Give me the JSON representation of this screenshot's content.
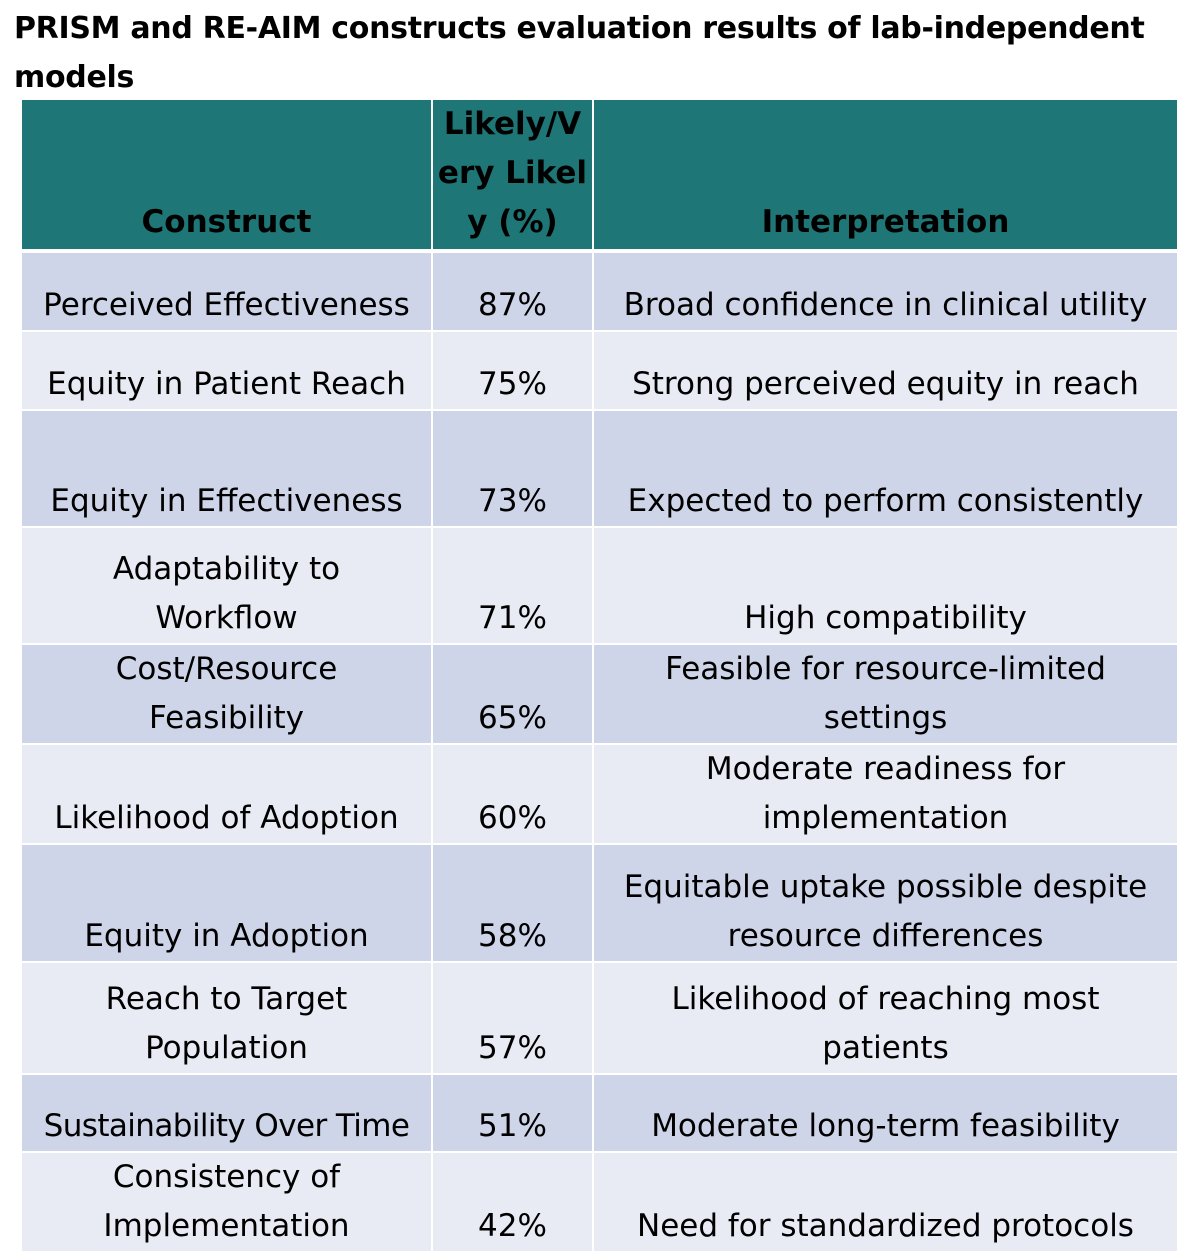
{
  "title": "PRISM and RE-AIM constructs evaluation results of lab-independent models",
  "colors": {
    "header_bg": "#1f7676",
    "row_odd_bg": "#cfd5e8",
    "row_even_bg": "#e8ebf4"
  },
  "table": {
    "headers": {
      "construct": "Construct",
      "likely": "Likely/Very Likely (%)",
      "interpretation": "Interpretation"
    },
    "rows": [
      {
        "construct": "Perceived Effectiveness",
        "likely": "87%",
        "interpretation": "Broad confidence in clinical utility"
      },
      {
        "construct": "Equity in Patient Reach",
        "likely": "75%",
        "interpretation": "Strong perceived equity in reach"
      },
      {
        "construct": "Equity in Effectiveness",
        "likely": "73%",
        "interpretation": "Expected to perform consistently"
      },
      {
        "construct": "Adaptability to Workflow",
        "likely": "71%",
        "interpretation": "High compatibility"
      },
      {
        "construct": "Cost/Resource Feasibility",
        "likely": "65%",
        "interpretation": "Feasible for resource-limited settings"
      },
      {
        "construct": "Likelihood of Adoption",
        "likely": "60%",
        "interpretation": "Moderate readiness for implementation"
      },
      {
        "construct": "Equity in Adoption",
        "likely": "58%",
        "interpretation": "Equitable uptake possible despite resource differences"
      },
      {
        "construct": "Reach to Target Population",
        "likely": "57%",
        "interpretation": "Likelihood of reaching most patients"
      },
      {
        "construct": "Sustainability Over Time",
        "likely": "51%",
        "interpretation": "Moderate long-term feasibility"
      },
      {
        "construct": "Consistency of Implementation",
        "likely": "42%",
        "interpretation": "Need for standardized protocols"
      }
    ]
  }
}
